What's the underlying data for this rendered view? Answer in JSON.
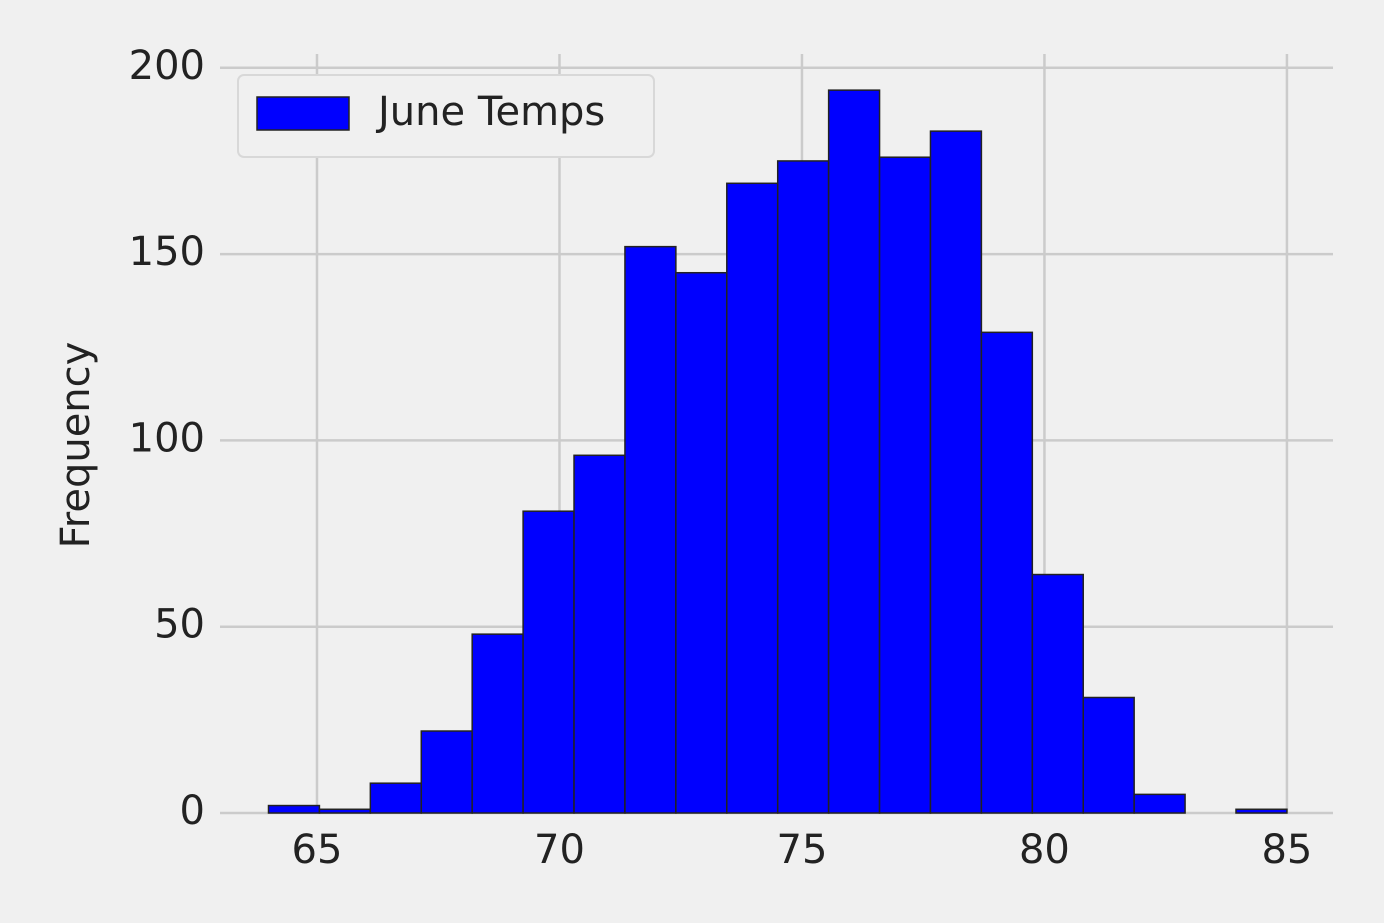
{
  "chart_data": {
    "type": "histogram",
    "y_label": "Frequency",
    "bins": [
      64,
      65.05,
      66.1,
      67.15,
      68.2,
      69.25,
      70.3,
      71.35,
      72.4,
      73.45,
      74.5,
      75.55,
      76.6,
      77.65,
      78.7,
      79.75,
      80.8,
      81.85,
      82.9,
      83.95,
      85
    ],
    "series": [
      {
        "name": "June Temps",
        "color": "#0000ff",
        "values": [
          2,
          1,
          8,
          22,
          48,
          81,
          96,
          152,
          145,
          169,
          175,
          194,
          176,
          183,
          129,
          64,
          31,
          5,
          0,
          1
        ]
      }
    ],
    "xlim": [
      63.0,
      85.95
    ],
    "xticks": [
      65,
      70,
      75,
      80,
      85
    ],
    "ylim": [
      0,
      203.7
    ],
    "yticks": [
      0,
      50,
      100,
      150,
      200
    ],
    "grid": true,
    "legend": "upper left"
  }
}
